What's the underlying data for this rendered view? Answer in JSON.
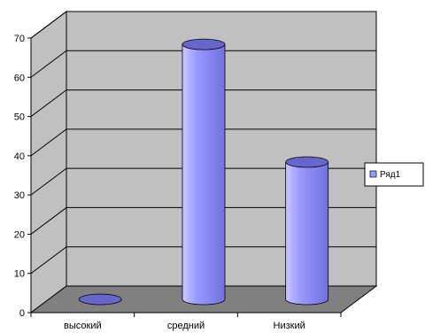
{
  "chart_data": {
    "type": "bar",
    "categories": [
      "высокий",
      "средний",
      "Низкий"
    ],
    "series": [
      {
        "name": "Ряд1",
        "values": [
          0,
          65,
          35
        ]
      }
    ],
    "ylim": [
      0,
      70
    ],
    "yticks": [
      0,
      10,
      20,
      30,
      40,
      50,
      60,
      70
    ],
    "grid": true,
    "legend_position": "right",
    "bar_shape": "cylinder",
    "colors": {
      "bar_fill": "#9999FF",
      "bar_light": "#C8C8FF",
      "bar_dark": "#7070E0",
      "bar_top": "#6666CC",
      "back_wall": "#C0C0C0",
      "floor": "#808080"
    }
  }
}
